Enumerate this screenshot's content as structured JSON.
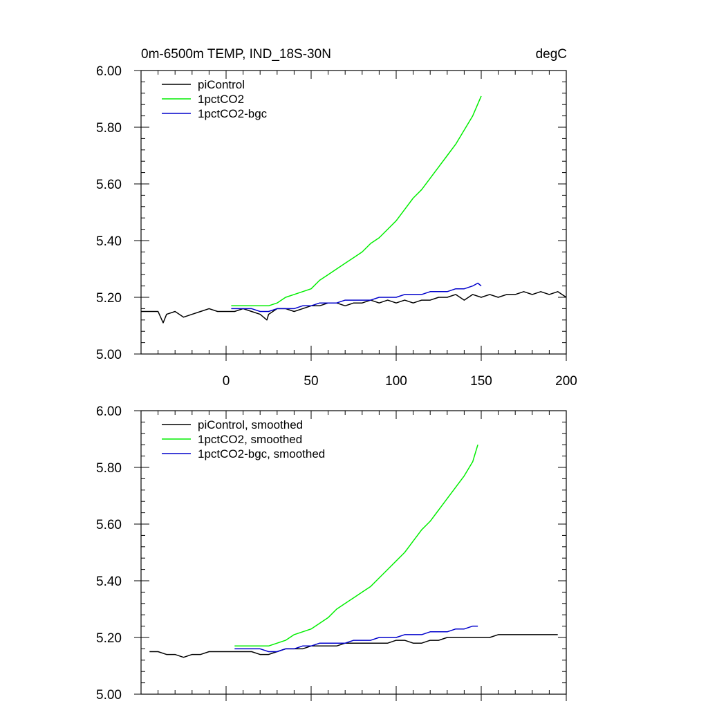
{
  "chart_data": [
    {
      "type": "line",
      "title": "0m-6500m TEMP, IND_18S-30N",
      "units": "degC",
      "xlim": [
        -50,
        200
      ],
      "ylim": [
        5.0,
        6.0
      ],
      "x_ticks": [
        0,
        50,
        100,
        150,
        200
      ],
      "x_tick_labels": [
        "0",
        "50",
        "100",
        "150",
        "200"
      ],
      "y_ticks": [
        5.0,
        5.2,
        5.4,
        5.6,
        5.8,
        6.0
      ],
      "y_tick_labels": [
        "5.00",
        "5.20",
        "5.40",
        "5.60",
        "5.80",
        "6.00"
      ],
      "legend_position": "top-left",
      "series": [
        {
          "name": "piControl",
          "color": "#000000",
          "x": [
            -50,
            -45,
            -40,
            -37,
            -35,
            -30,
            -25,
            -20,
            -15,
            -10,
            -5,
            0,
            5,
            10,
            15,
            20,
            24,
            25,
            30,
            35,
            40,
            45,
            50,
            55,
            60,
            65,
            70,
            75,
            80,
            85,
            90,
            95,
            100,
            105,
            110,
            115,
            120,
            125,
            130,
            135,
            140,
            145,
            150,
            155,
            160,
            165,
            170,
            175,
            180,
            185,
            190,
            195,
            200
          ],
          "y": [
            5.15,
            5.15,
            5.15,
            5.11,
            5.14,
            5.15,
            5.13,
            5.14,
            5.15,
            5.16,
            5.15,
            5.15,
            5.15,
            5.16,
            5.15,
            5.14,
            5.12,
            5.14,
            5.16,
            5.16,
            5.15,
            5.16,
            5.17,
            5.17,
            5.18,
            5.18,
            5.17,
            5.18,
            5.18,
            5.19,
            5.18,
            5.19,
            5.18,
            5.19,
            5.18,
            5.19,
            5.19,
            5.2,
            5.2,
            5.21,
            5.19,
            5.21,
            5.2,
            5.21,
            5.2,
            5.21,
            5.21,
            5.22,
            5.21,
            5.22,
            5.21,
            5.22,
            5.2
          ]
        },
        {
          "name": "1pctCO2",
          "color": "#00ee00",
          "x": [
            3,
            10,
            15,
            20,
            25,
            30,
            35,
            40,
            45,
            50,
            55,
            60,
            65,
            70,
            75,
            80,
            85,
            90,
            95,
            100,
            105,
            110,
            115,
            120,
            125,
            130,
            135,
            140,
            145,
            150
          ],
          "y": [
            5.17,
            5.17,
            5.17,
            5.17,
            5.17,
            5.18,
            5.2,
            5.21,
            5.22,
            5.23,
            5.26,
            5.28,
            5.3,
            5.32,
            5.34,
            5.36,
            5.39,
            5.41,
            5.44,
            5.47,
            5.51,
            5.55,
            5.58,
            5.62,
            5.66,
            5.7,
            5.74,
            5.79,
            5.84,
            5.91
          ]
        },
        {
          "name": "1pctCO2-bgc",
          "color": "#0000cc",
          "x": [
            3,
            10,
            15,
            20,
            25,
            30,
            35,
            40,
            45,
            50,
            55,
            60,
            65,
            70,
            75,
            80,
            85,
            90,
            95,
            100,
            105,
            110,
            115,
            120,
            125,
            130,
            135,
            140,
            145,
            148,
            150
          ],
          "y": [
            5.16,
            5.16,
            5.16,
            5.15,
            5.15,
            5.16,
            5.16,
            5.16,
            5.17,
            5.17,
            5.18,
            5.18,
            5.18,
            5.19,
            5.19,
            5.19,
            5.19,
            5.2,
            5.2,
            5.2,
            5.21,
            5.21,
            5.21,
            5.22,
            5.22,
            5.22,
            5.23,
            5.23,
            5.24,
            5.25,
            5.24
          ]
        }
      ]
    },
    {
      "type": "line",
      "xlim": [
        -50,
        200
      ],
      "ylim": [
        5.0,
        6.0
      ],
      "x_ticks": [
        0,
        50,
        100,
        150,
        200
      ],
      "y_ticks": [
        5.0,
        5.2,
        5.4,
        5.6,
        5.8,
        6.0
      ],
      "y_tick_labels": [
        "5.00",
        "5.20",
        "5.40",
        "5.60",
        "5.80",
        "6.00"
      ],
      "legend_position": "top-left",
      "series": [
        {
          "name": "piControl, smoothed",
          "color": "#000000",
          "x": [
            -45,
            -40,
            -35,
            -30,
            -25,
            -20,
            -15,
            -10,
            -5,
            0,
            5,
            10,
            15,
            20,
            25,
            30,
            35,
            40,
            45,
            50,
            55,
            60,
            65,
            70,
            75,
            80,
            85,
            90,
            95,
            100,
            105,
            110,
            115,
            120,
            125,
            130,
            135,
            140,
            145,
            150,
            155,
            160,
            165,
            170,
            175,
            180,
            185,
            190,
            195
          ],
          "y": [
            5.15,
            5.15,
            5.14,
            5.14,
            5.13,
            5.14,
            5.14,
            5.15,
            5.15,
            5.15,
            5.15,
            5.15,
            5.15,
            5.14,
            5.14,
            5.15,
            5.16,
            5.16,
            5.16,
            5.17,
            5.17,
            5.17,
            5.17,
            5.18,
            5.18,
            5.18,
            5.18,
            5.18,
            5.18,
            5.19,
            5.19,
            5.18,
            5.18,
            5.19,
            5.19,
            5.2,
            5.2,
            5.2,
            5.2,
            5.2,
            5.2,
            5.21,
            5.21,
            5.21,
            5.21,
            5.21,
            5.21,
            5.21,
            5.21
          ]
        },
        {
          "name": "1pctCO2, smoothed",
          "color": "#00ee00",
          "x": [
            5,
            10,
            15,
            20,
            25,
            30,
            35,
            40,
            45,
            50,
            55,
            60,
            65,
            70,
            75,
            80,
            85,
            90,
            95,
            100,
            105,
            110,
            115,
            120,
            125,
            130,
            135,
            140,
            145,
            148
          ],
          "y": [
            5.17,
            5.17,
            5.17,
            5.17,
            5.17,
            5.18,
            5.19,
            5.21,
            5.22,
            5.23,
            5.25,
            5.27,
            5.3,
            5.32,
            5.34,
            5.36,
            5.38,
            5.41,
            5.44,
            5.47,
            5.5,
            5.54,
            5.58,
            5.61,
            5.65,
            5.69,
            5.73,
            5.77,
            5.82,
            5.88
          ]
        },
        {
          "name": "1pctCO2-bgc, smoothed",
          "color": "#0000cc",
          "x": [
            5,
            10,
            15,
            20,
            25,
            30,
            35,
            40,
            45,
            50,
            55,
            60,
            65,
            70,
            75,
            80,
            85,
            90,
            95,
            100,
            105,
            110,
            115,
            120,
            125,
            130,
            135,
            140,
            145,
            148
          ],
          "y": [
            5.16,
            5.16,
            5.16,
            5.16,
            5.15,
            5.15,
            5.16,
            5.16,
            5.17,
            5.17,
            5.18,
            5.18,
            5.18,
            5.18,
            5.19,
            5.19,
            5.19,
            5.2,
            5.2,
            5.2,
            5.21,
            5.21,
            5.21,
            5.22,
            5.22,
            5.22,
            5.23,
            5.23,
            5.24,
            5.24
          ]
        }
      ]
    }
  ]
}
